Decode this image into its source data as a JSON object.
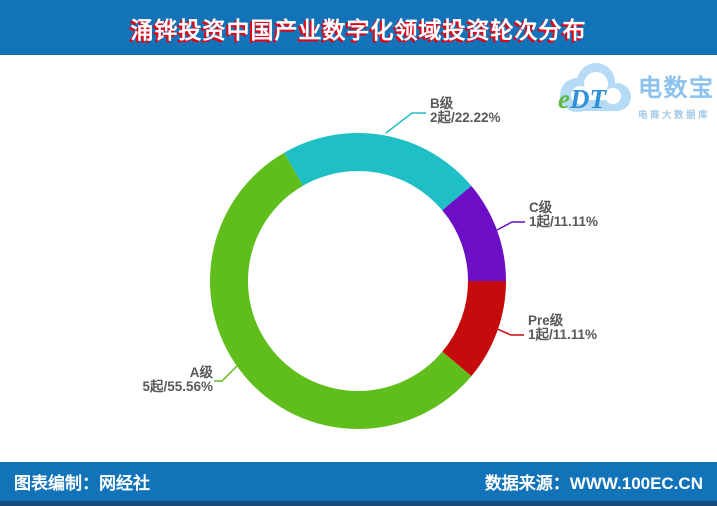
{
  "header": {
    "title": "涌铧投资中国产业数字化领域投资轮次分布",
    "bg_color": "#1273B9",
    "title_color": "#FFFFFF",
    "title_shadow_color": "#E60012"
  },
  "logo": {
    "mark_e": "e",
    "mark_dt": "DT",
    "brand": "电数宝",
    "subtitle": "电商大数据库",
    "cloud_color": "#B5DBF6",
    "brand_color": "#8CC3EE",
    "subtitle_color": "#A5C9E6"
  },
  "chart_data": {
    "type": "pie",
    "donut": true,
    "title": "涌铧投资中国产业数字化领域投资轮次分布",
    "start_angle": 120,
    "clockwise": true,
    "label_color": "#595959",
    "slices": [
      {
        "name": "B级",
        "deals": 2,
        "percent": 22.22,
        "label": "2起/22.22%",
        "color": "#1FBFC6"
      },
      {
        "name": "C级",
        "deals": 1,
        "percent": 11.11,
        "label": "1起/11.11%",
        "color": "#6B0EC6"
      },
      {
        "name": "Pre级",
        "deals": 1,
        "percent": 11.11,
        "label": "1起/11.11%",
        "color": "#C50B0B"
      },
      {
        "name": "A级",
        "deals": 5,
        "percent": 55.56,
        "label": "5起/55.56%",
        "color": "#5FBE1C"
      }
    ]
  },
  "footer": {
    "left": "图表编制：网经社",
    "right": "数据来源：WWW.100EC.CN",
    "bg_color": "#1273B9",
    "edge_color": "#17497A"
  }
}
